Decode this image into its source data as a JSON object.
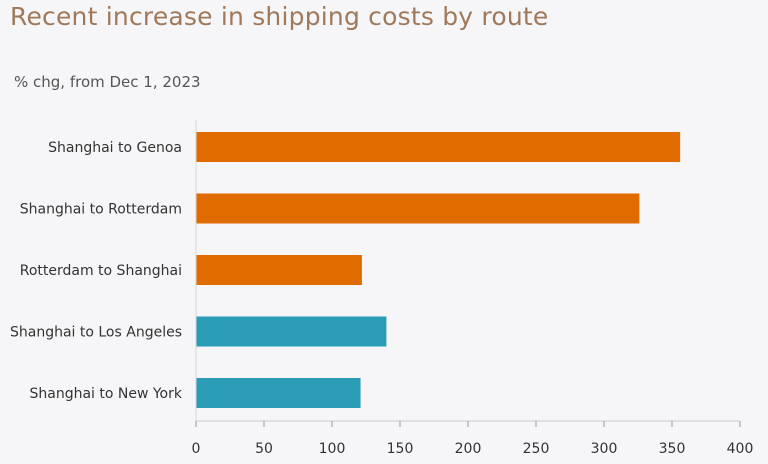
{
  "chart_data": {
    "type": "bar",
    "orientation": "horizontal",
    "title": "Recent increase in shipping costs by route",
    "subtitle": "% chg, from Dec 1, 2023",
    "categories": [
      "Shanghai to Genoa",
      "Shanghai to Rotterdam",
      "Rotterdam to Shanghai",
      "Shanghai to Los Angeles",
      "Shanghai to New York"
    ],
    "values": [
      356,
      326,
      122,
      140,
      121
    ],
    "bar_colors": [
      "#e06c00",
      "#e06c00",
      "#e06c00",
      "#2b9cb5",
      "#2b9cb5"
    ],
    "xlim": [
      0,
      400
    ],
    "xticks": [
      "0",
      "50",
      "100",
      "150",
      "200",
      "250",
      "300",
      "350",
      "400"
    ],
    "xlabel": "",
    "ylabel": "",
    "grid": false,
    "legend": "none"
  }
}
